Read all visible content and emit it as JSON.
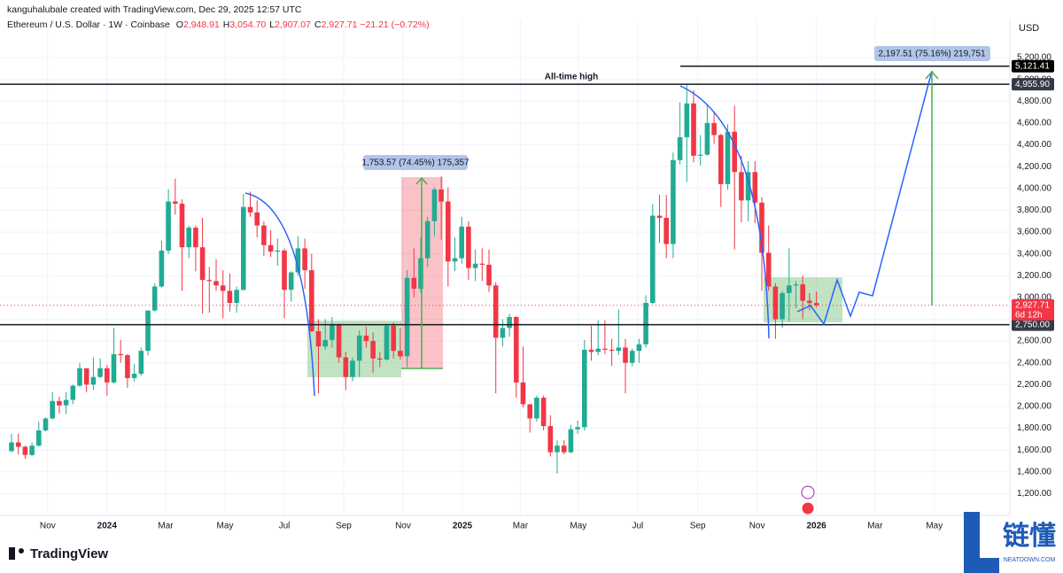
{
  "header": {
    "credit": "kanguhalubale created with TradingView.com, Dec 29, 2025 12:57 UTC",
    "symbol": "Ethereum / U.S. Dollar · 1W · Coinbase",
    "ohlc": [
      {
        "key": "O",
        "value": "2,948.91"
      },
      {
        "key": "H",
        "value": "3,054.70"
      },
      {
        "key": "L",
        "value": "2,907.07"
      },
      {
        "key": "C",
        "value": "2,927.71"
      }
    ],
    "change": "−21.21 (−0.72%)"
  },
  "chart_data": {
    "type": "candlestick",
    "currency": "USD",
    "up_color": "#22ab94",
    "down_color": "#f23645",
    "ylim": [
      1000,
      5550
    ],
    "yticks": [
      {
        "value": 1200,
        "label": "1,200.00"
      },
      {
        "value": 1400,
        "label": "1,400.00"
      },
      {
        "value": 1600,
        "label": "1,600.00"
      },
      {
        "value": 1800,
        "label": "1,800.00"
      },
      {
        "value": 2000,
        "label": "2,000.00"
      },
      {
        "value": 2200,
        "label": "2,200.00"
      },
      {
        "value": 2400,
        "label": "2,400.00"
      },
      {
        "value": 2600,
        "label": "2,600.00"
      },
      {
        "value": 2800,
        "label": "2,800.00"
      },
      {
        "value": 3000,
        "label": "3,000.00"
      },
      {
        "value": 3200,
        "label": "3,200.00"
      },
      {
        "value": 3400,
        "label": "3,400.00"
      },
      {
        "value": 3600,
        "label": "3,600.00"
      },
      {
        "value": 3800,
        "label": "3,800.00"
      },
      {
        "value": 4000,
        "label": "4,000.00"
      },
      {
        "value": 4200,
        "label": "4,200.00"
      },
      {
        "value": 4400,
        "label": "4,400.00"
      },
      {
        "value": 4600,
        "label": "4,600.00"
      },
      {
        "value": 4800,
        "label": "4,800.00"
      },
      {
        "value": 5000,
        "label": "5,000.00"
      },
      {
        "value": 5200,
        "label": "5,200.00"
      }
    ],
    "xticks": [
      {
        "value": 5.3,
        "label": "Nov"
      },
      {
        "value": 14,
        "label": "2024"
      },
      {
        "value": 22.6,
        "label": "Mar"
      },
      {
        "value": 31.3,
        "label": "May"
      },
      {
        "value": 40,
        "label": "Jul"
      },
      {
        "value": 48.7,
        "label": "Sep"
      },
      {
        "value": 57.4,
        "label": "Nov"
      },
      {
        "value": 66.1,
        "label": "2025"
      },
      {
        "value": 74.6,
        "label": "Mar"
      },
      {
        "value": 83.1,
        "label": "May"
      },
      {
        "value": 91.8,
        "label": "Jul"
      },
      {
        "value": 100.6,
        "label": "Sep"
      },
      {
        "value": 109.3,
        "label": "Nov"
      },
      {
        "value": 118,
        "label": "2026"
      },
      {
        "value": 126.6,
        "label": "Mar"
      },
      {
        "value": 135.3,
        "label": "May"
      }
    ],
    "ohlc": [
      [
        1590,
        1750,
        1580,
        1670
      ],
      [
        1670,
        1750,
        1560,
        1630
      ],
      [
        1630,
        1640,
        1520,
        1555
      ],
      [
        1555,
        1670,
        1545,
        1640
      ],
      [
        1640,
        1860,
        1630,
        1780
      ],
      [
        1780,
        1900,
        1770,
        1890
      ],
      [
        1890,
        2130,
        1880,
        2050
      ],
      [
        2050,
        2090,
        1935,
        2010
      ],
      [
        2010,
        2130,
        1930,
        2060
      ],
      [
        2060,
        2200,
        2020,
        2190
      ],
      [
        2190,
        2400,
        2180,
        2350
      ],
      [
        2350,
        2350,
        2130,
        2200
      ],
      [
        2200,
        2450,
        2150,
        2270
      ],
      [
        2270,
        2440,
        2260,
        2350
      ],
      [
        2350,
        2380,
        2100,
        2220
      ],
      [
        2220,
        2720,
        2210,
        2480
      ],
      [
        2480,
        2610,
        2400,
        2470
      ],
      [
        2470,
        2480,
        2170,
        2260
      ],
      [
        2260,
        2390,
        2230,
        2300
      ],
      [
        2300,
        2540,
        2280,
        2510
      ],
      [
        2510,
        2880,
        2470,
        2880
      ],
      [
        2880,
        3130,
        2870,
        3100
      ],
      [
        3100,
        3520,
        3090,
        3430
      ],
      [
        3430,
        3990,
        3400,
        3880
      ],
      [
        3880,
        4090,
        3760,
        3860
      ],
      [
        3860,
        3900,
        3060,
        3460
      ],
      [
        3460,
        3660,
        3360,
        3640
      ],
      [
        3640,
        3660,
        3240,
        3460
      ],
      [
        3460,
        3730,
        2850,
        3160
      ],
      [
        3160,
        3280,
        2860,
        3150
      ],
      [
        3150,
        3350,
        3060,
        3110
      ],
      [
        3110,
        3250,
        2810,
        3060
      ],
      [
        3060,
        3220,
        2870,
        2950
      ],
      [
        2950,
        3100,
        2860,
        3070
      ],
      [
        3070,
        3950,
        3060,
        3830
      ],
      [
        3830,
        3970,
        3740,
        3780
      ],
      [
        3780,
        3890,
        3550,
        3660
      ],
      [
        3660,
        3700,
        3380,
        3480
      ],
      [
        3480,
        3620,
        3370,
        3420
      ],
      [
        3420,
        3540,
        3290,
        3430
      ],
      [
        3430,
        3450,
        2810,
        3070
      ],
      [
        3070,
        3240,
        2960,
        3230
      ],
      [
        3230,
        3560,
        3200,
        3450
      ],
      [
        3450,
        3540,
        3080,
        3250
      ],
      [
        3250,
        3400,
        2680,
        2690
      ],
      [
        2690,
        2800,
        2120,
        2550
      ],
      [
        2550,
        2800,
        2520,
        2610
      ],
      [
        2610,
        2820,
        2540,
        2750
      ],
      [
        2750,
        2760,
        2400,
        2450
      ],
      [
        2450,
        2500,
        2150,
        2270
      ],
      [
        2270,
        2450,
        2230,
        2420
      ],
      [
        2420,
        2700,
        2270,
        2650
      ],
      [
        2650,
        2730,
        2540,
        2600
      ],
      [
        2600,
        2680,
        2310,
        2440
      ],
      [
        2440,
        2500,
        2360,
        2430
      ],
      [
        2430,
        2760,
        2420,
        2740
      ],
      [
        2740,
        2770,
        2440,
        2510
      ],
      [
        2510,
        2720,
        2430,
        2460
      ],
      [
        2460,
        3250,
        2360,
        3180
      ],
      [
        3180,
        3450,
        3000,
        3080
      ],
      [
        3080,
        3550,
        3040,
        3360
      ],
      [
        3360,
        3740,
        3280,
        3700
      ],
      [
        3700,
        4010,
        3560,
        3990
      ],
      [
        3990,
        4110,
        3530,
        3880
      ],
      [
        3880,
        4010,
        3100,
        3330
      ],
      [
        3330,
        3550,
        3240,
        3360
      ],
      [
        3360,
        3740,
        3310,
        3650
      ],
      [
        3650,
        3700,
        3160,
        3270
      ],
      [
        3270,
        3440,
        3150,
        3310
      ],
      [
        3310,
        3450,
        3150,
        3300
      ],
      [
        3300,
        3440,
        3050,
        3110
      ],
      [
        3110,
        3140,
        2120,
        2630
      ],
      [
        2630,
        2800,
        2550,
        2720
      ],
      [
        2720,
        2850,
        2640,
        2820
      ],
      [
        2820,
        2830,
        2080,
        2220
      ],
      [
        2220,
        2550,
        1990,
        2020
      ],
      [
        2020,
        2020,
        1760,
        1890
      ],
      [
        1890,
        2100,
        1860,
        2080
      ],
      [
        2080,
        2100,
        1780,
        1820
      ],
      [
        1820,
        1920,
        1540,
        1580
      ],
      [
        1580,
        1690,
        1385,
        1640
      ],
      [
        1640,
        1690,
        1560,
        1580
      ],
      [
        1580,
        1830,
        1570,
        1790
      ],
      [
        1790,
        1870,
        1750,
        1810
      ],
      [
        1810,
        2610,
        1780,
        2520
      ],
      [
        2520,
        2740,
        2420,
        2500
      ],
      [
        2500,
        2790,
        2470,
        2530
      ],
      [
        2530,
        2790,
        2480,
        2520
      ],
      [
        2520,
        2620,
        2370,
        2510
      ],
      [
        2510,
        2890,
        2470,
        2540
      ],
      [
        2540,
        2620,
        2120,
        2400
      ],
      [
        2400,
        2530,
        2370,
        2510
      ],
      [
        2510,
        2620,
        2400,
        2570
      ],
      [
        2570,
        3020,
        2540,
        2950
      ],
      [
        2950,
        3860,
        2940,
        3750
      ],
      [
        3750,
        3940,
        3500,
        3730
      ],
      [
        3730,
        3940,
        3360,
        3490
      ],
      [
        3490,
        4330,
        3360,
        4260
      ],
      [
        4260,
        4790,
        4220,
        4470
      ],
      [
        4470,
        4950,
        4060,
        4780
      ],
      [
        4780,
        4900,
        4240,
        4300
      ],
      [
        4300,
        4490,
        4210,
        4310
      ],
      [
        4310,
        4770,
        4300,
        4600
      ],
      [
        4600,
        4700,
        4410,
        4490
      ],
      [
        4490,
        4500,
        3830,
        4040
      ],
      [
        4040,
        4590,
        3990,
        4520
      ],
      [
        4520,
        4760,
        3440,
        4150
      ],
      [
        4150,
        4300,
        3690,
        3890
      ],
      [
        3890,
        4250,
        3700,
        4150
      ],
      [
        4150,
        4250,
        3680,
        3870
      ],
      [
        3870,
        3920,
        3060,
        3410
      ],
      [
        3410,
        3660,
        3060,
        3100
      ],
      [
        3100,
        3130,
        2620,
        2800
      ],
      [
        2800,
        3060,
        2720,
        3040
      ],
      [
        3040,
        3450,
        2780,
        3110
      ],
      [
        3110,
        3150,
        2900,
        3120
      ],
      [
        3120,
        3200,
        2800,
        2970
      ],
      [
        2970,
        3040,
        2880,
        2948.91
      ],
      [
        2948.91,
        3054.7,
        2907.07,
        2927.71
      ]
    ],
    "levels": [
      {
        "value": 5121.41,
        "label": "5,121.41"
      },
      {
        "value": 4955.9,
        "label": "4,955.90"
      },
      {
        "value": 2750,
        "label": "2,750.00"
      }
    ],
    "last_price": {
      "value": 2927.71,
      "label": "2,927.71"
    },
    "countdown": "6d 12h",
    "annotations": {
      "ath": "All-time high",
      "measure1": "1,753.57 (74.45%) 175,357",
      "measure2": "2,197.51 (75.16%) 219,751"
    }
  },
  "footer": {
    "logo": "TradingView",
    "watermark": "链懂",
    "watermark_site": "NEATDOWN.COM"
  }
}
